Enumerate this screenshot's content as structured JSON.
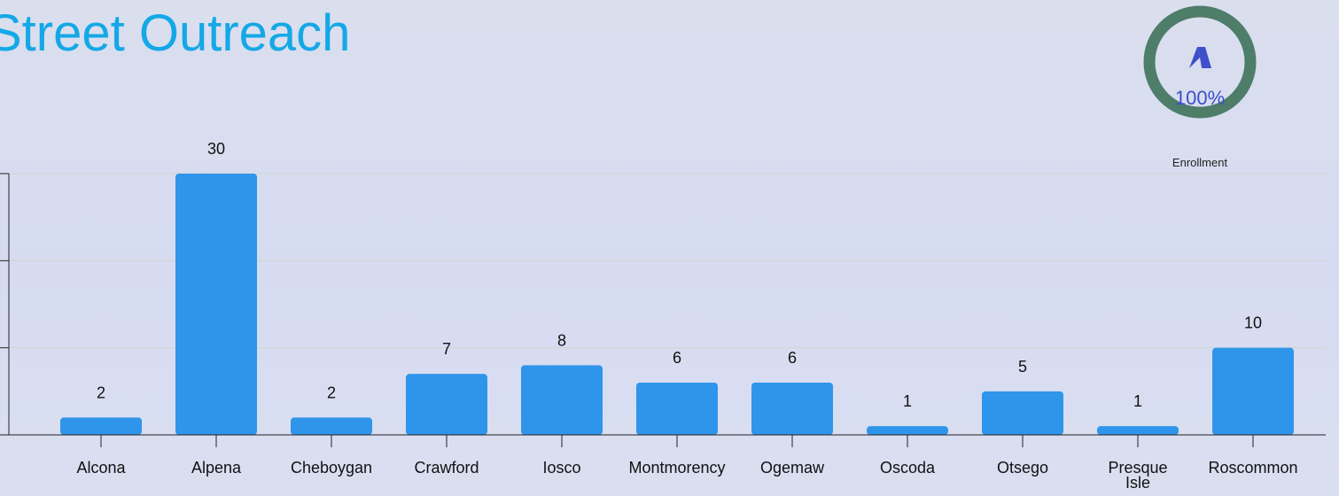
{
  "title": "Street Outreach",
  "gauge": {
    "value_text": "100%",
    "percent": 100,
    "label": "Enrollment",
    "ring_color": "#4e7d6a",
    "value_color": "#3d4fc9",
    "icon": "tent-icon"
  },
  "colors": {
    "title": "#14a8e6",
    "bar": "#2f95ea",
    "axis": "#222222",
    "grid": "#cfd6ce"
  },
  "chart_data": {
    "type": "bar",
    "categories": [
      "Alcona",
      "Alpena",
      "Cheboygan",
      "Crawford",
      "Iosco",
      "Montmorency",
      "Ogemaw",
      "Oscoda",
      "Otsego",
      "Presque Isle",
      "Roscommon"
    ],
    "values": [
      2,
      30,
      2,
      7,
      8,
      6,
      6,
      1,
      5,
      1,
      10
    ],
    "data_labels": [
      "2",
      "30",
      "2",
      "7",
      "8",
      "6",
      "6",
      "1",
      "5",
      "1",
      "10"
    ],
    "title": "Street Outreach",
    "xlabel": "",
    "ylabel": "",
    "ylim": [
      0,
      30
    ],
    "grid": true,
    "legend": "none"
  }
}
